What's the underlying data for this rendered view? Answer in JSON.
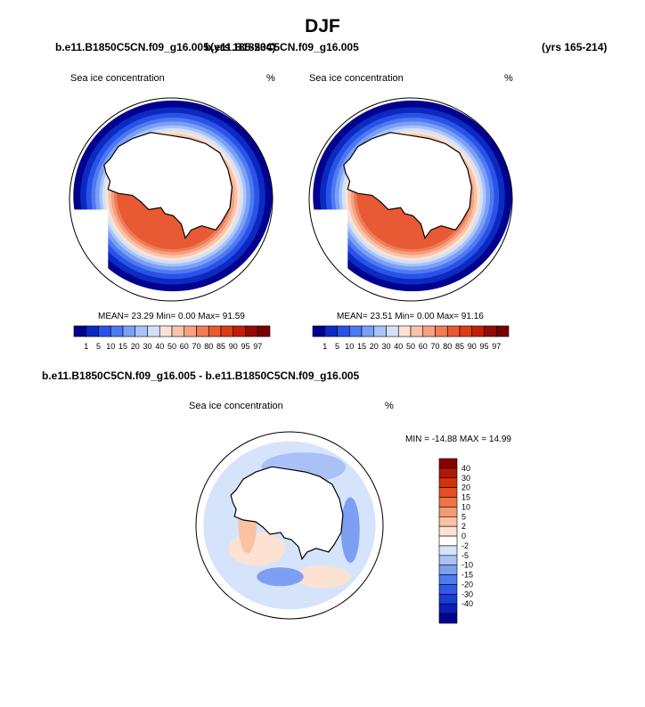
{
  "title": "DJF",
  "panels": {
    "left": {
      "case": "b.e11.B1850C5CN.f09_g16.005",
      "years": "(yrs 185-234)",
      "variable": "Sea ice concentration",
      "units": "%",
      "stats": "MEAN=  23.29  Min=   0.00  Max=  91.59"
    },
    "right": {
      "case": "b.e11.B1850C5CN.f09_g16.005",
      "years": "(yrs 165-214)",
      "variable": "Sea ice concentration",
      "units": "%",
      "stats": "MEAN=  23.51  Min=   0.00  Max=  91.16"
    },
    "diff": {
      "title": "b.e11.B1850C5CN.f09_g16.005 - b.e11.B1850C5CN.f09_g16.005",
      "variable": "Sea ice concentration",
      "units": "%",
      "stats": "MIN = -14.88 MAX =  14.99"
    }
  },
  "colors": {
    "abs": [
      "#02028f",
      "#0a2ac2",
      "#2a52e8",
      "#4d79f2",
      "#7a9ff5",
      "#a8c3f7",
      "#d2e1fa",
      "#fbe2d4",
      "#f9c3a8",
      "#f6a080",
      "#f07b57",
      "#e85a33",
      "#dd3a17",
      "#c21e0a",
      "#950a03",
      "#7a0000"
    ],
    "diff": [
      "#02028f",
      "#0b1fb5",
      "#1a3cd6",
      "#2f5ae8",
      "#4f7bee",
      "#7d9ff3",
      "#a9c1f7",
      "#d6e4fb",
      "#ffffff",
      "#fde2d2",
      "#fac1a3",
      "#f49a74",
      "#ee7448",
      "#e64e22",
      "#d2320c",
      "#b01808",
      "#8b0000"
    ]
  },
  "chart_data": [
    {
      "type": "heatmap",
      "title": "Sea ice concentration",
      "subtitle": "b.e11.B1850C5CN.f09_g16.005 (yrs 185-234)",
      "units": "%",
      "projection": "south polar stereographic",
      "colorbar_labels": [
        "1",
        "5",
        "10",
        "15",
        "20",
        "30",
        "40",
        "50",
        "60",
        "70",
        "80",
        "85",
        "90",
        "95",
        "97"
      ],
      "stats": {
        "mean": 23.29,
        "min": 0.0,
        "max": 91.59
      }
    },
    {
      "type": "heatmap",
      "title": "Sea ice concentration",
      "subtitle": "b.e11.B1850C5CN.f09_g16.005 (yrs 165-214)",
      "units": "%",
      "projection": "south polar stereographic",
      "colorbar_labels": [
        "1",
        "5",
        "10",
        "15",
        "20",
        "30",
        "40",
        "50",
        "60",
        "70",
        "80",
        "85",
        "90",
        "95",
        "97"
      ],
      "stats": {
        "mean": 23.51,
        "min": 0.0,
        "max": 91.16
      }
    },
    {
      "type": "heatmap",
      "title": "Sea ice concentration",
      "subtitle": "b.e11.B1850C5CN.f09_g16.005 - b.e11.B1850C5CN.f09_g16.005",
      "units": "%",
      "projection": "south polar stereographic",
      "colorbar_labels": [
        "40",
        "30",
        "20",
        "15",
        "10",
        "5",
        "2",
        "0",
        "-2",
        "-5",
        "-10",
        "-15",
        "-20",
        "-30",
        "-40"
      ],
      "stats": {
        "min": -14.88,
        "max": 14.99
      }
    }
  ]
}
